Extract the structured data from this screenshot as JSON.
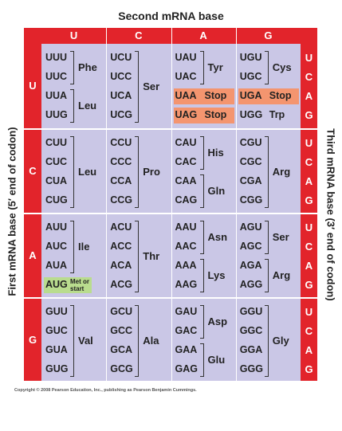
{
  "title": "Second mRNA base",
  "left_label": "First mRNA base (5′ end of codon)",
  "right_label": "Third mRNA base (3′ end of codon)",
  "copyright": "Copyright © 2008 Pearson Education, Inc., publishing as Pearson Benjamin Cummings.",
  "second_bases": [
    "U",
    "C",
    "A",
    "G"
  ],
  "rows": [
    {
      "first": "U",
      "third": [
        "U",
        "C",
        "A",
        "G"
      ],
      "cells": [
        {
          "groups": [
            {
              "label": "Phe",
              "codons": [
                "UUU",
                "UUC"
              ]
            },
            {
              "label": "Leu",
              "codons": [
                "UUA",
                "UUG"
              ]
            }
          ]
        },
        {
          "groups": [
            {
              "label": "Ser",
              "codons": [
                "UCU",
                "UCC",
                "UCA",
                "UCG"
              ]
            }
          ]
        },
        {
          "groups": [
            {
              "label": "Tyr",
              "codons": [
                "UAU",
                "UAC"
              ]
            },
            {
              "label": "Stop",
              "codons": [
                "UAA"
              ],
              "color": "#f4956f"
            },
            {
              "label": "Stop",
              "codons": [
                "UAG"
              ],
              "color": "#f4956f"
            }
          ]
        },
        {
          "groups": [
            {
              "label": "Cys",
              "codons": [
                "UGU",
                "UGC"
              ]
            },
            {
              "label": "Stop",
              "codons": [
                "UGA"
              ],
              "color": "#f4956f"
            },
            {
              "label": "Trp",
              "codons": [
                "UGG"
              ]
            }
          ]
        }
      ]
    },
    {
      "first": "C",
      "third": [
        "U",
        "C",
        "A",
        "G"
      ],
      "cells": [
        {
          "groups": [
            {
              "label": "Leu",
              "codons": [
                "CUU",
                "CUC",
                "CUA",
                "CUG"
              ]
            }
          ]
        },
        {
          "groups": [
            {
              "label": "Pro",
              "codons": [
                "CCU",
                "CCC",
                "CCA",
                "CCG"
              ]
            }
          ]
        },
        {
          "groups": [
            {
              "label": "His",
              "codons": [
                "CAU",
                "CAC"
              ]
            },
            {
              "label": "Gln",
              "codons": [
                "CAA",
                "CAG"
              ]
            }
          ]
        },
        {
          "groups": [
            {
              "label": "Arg",
              "codons": [
                "CGU",
                "CGC",
                "CGA",
                "CGG"
              ]
            }
          ]
        }
      ]
    },
    {
      "first": "A",
      "third": [
        "U",
        "C",
        "A",
        "G"
      ],
      "cells": [
        {
          "groups": [
            {
              "label": "Ile",
              "codons": [
                "AUU",
                "AUC",
                "AUA"
              ]
            },
            {
              "label": "Met or start",
              "codons": [
                "AUG"
              ],
              "color": "#b9dc8e"
            }
          ]
        },
        {
          "groups": [
            {
              "label": "Thr",
              "codons": [
                "ACU",
                "ACC",
                "ACA",
                "ACG"
              ]
            }
          ]
        },
        {
          "groups": [
            {
              "label": "Asn",
              "codons": [
                "AAU",
                "AAC"
              ]
            },
            {
              "label": "Lys",
              "codons": [
                "AAA",
                "AAG"
              ]
            }
          ]
        },
        {
          "groups": [
            {
              "label": "Ser",
              "codons": [
                "AGU",
                "AGC"
              ]
            },
            {
              "label": "Arg",
              "codons": [
                "AGA",
                "AGG"
              ]
            }
          ]
        }
      ]
    },
    {
      "first": "G",
      "third": [
        "U",
        "C",
        "A",
        "G"
      ],
      "cells": [
        {
          "groups": [
            {
              "label": "Val",
              "codons": [
                "GUU",
                "GUC",
                "GUA",
                "GUG"
              ]
            }
          ]
        },
        {
          "groups": [
            {
              "label": "Ala",
              "codons": [
                "GCU",
                "GCC",
                "GCA",
                "GCG"
              ]
            }
          ]
        },
        {
          "groups": [
            {
              "label": "Asp",
              "codons": [
                "GAU",
                "GAC"
              ]
            },
            {
              "label": "Glu",
              "codons": [
                "GAA",
                "GAG"
              ]
            }
          ]
        },
        {
          "groups": [
            {
              "label": "Gly",
              "codons": [
                "GGU",
                "GGC",
                "GGA",
                "GGG"
              ]
            }
          ]
        }
      ]
    }
  ]
}
